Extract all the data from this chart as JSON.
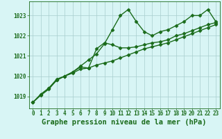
{
  "title": "Graphe pression niveau de la mer (hPa)",
  "bg_color": "#d8f5f5",
  "grid_color": "#a8cece",
  "line_color": "#1a6b1a",
  "x_values": [
    0,
    1,
    2,
    3,
    4,
    5,
    6,
    7,
    8,
    9,
    10,
    11,
    12,
    13,
    14,
    15,
    16,
    17,
    18,
    19,
    20,
    21,
    22,
    23
  ],
  "line1": [
    1018.7,
    1019.1,
    1019.4,
    1019.8,
    1020.0,
    1020.2,
    1020.5,
    1020.8,
    1021.1,
    1021.6,
    1022.3,
    1023.0,
    1023.3,
    1022.7,
    1022.2,
    1022.0,
    1022.2,
    1022.3,
    1022.5,
    1022.7,
    1023.0,
    1023.0,
    1023.3,
    1022.7
  ],
  "line2": [
    1018.7,
    1019.1,
    1019.4,
    1019.85,
    1020.0,
    1020.2,
    1020.45,
    1020.4,
    1021.35,
    1021.65,
    1021.55,
    1021.4,
    1021.4,
    1021.45,
    1021.55,
    1021.65,
    1021.7,
    1021.8,
    1022.0,
    1022.1,
    1022.25,
    1022.4,
    1022.55,
    1022.65
  ],
  "line3": [
    1018.7,
    1019.05,
    1019.35,
    1019.8,
    1020.0,
    1020.15,
    1020.35,
    1020.4,
    1020.55,
    1020.65,
    1020.75,
    1020.9,
    1021.05,
    1021.2,
    1021.35,
    1021.45,
    1021.55,
    1021.65,
    1021.8,
    1021.95,
    1022.1,
    1022.25,
    1022.4,
    1022.55
  ],
  "xlim": [
    -0.5,
    23.5
  ],
  "ylim": [
    1018.4,
    1023.7
  ],
  "yticks": [
    1019,
    1020,
    1021,
    1022,
    1023
  ],
  "xticks": [
    0,
    1,
    2,
    3,
    4,
    5,
    6,
    7,
    8,
    9,
    10,
    11,
    12,
    13,
    14,
    15,
    16,
    17,
    18,
    19,
    20,
    21,
    22,
    23
  ],
  "marker": "D",
  "markersize": 2.5,
  "linewidth": 1.0,
  "title_fontsize": 7.5,
  "tick_fontsize": 5.5,
  "title_color": "#1a6b1a",
  "tick_color": "#1a6b1a"
}
